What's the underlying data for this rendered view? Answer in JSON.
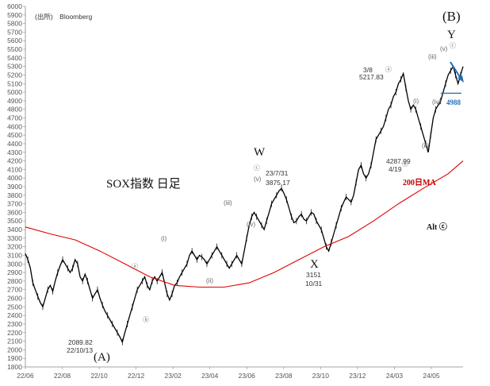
{
  "chart_data": {
    "type": "line",
    "title": "SOX指数 日足",
    "source_label": "(出所)　Bloomberg",
    "y_axis": {
      "min": 1800,
      "max": 6000,
      "step": 100,
      "tick_labels": [
        "1800",
        "1900",
        "2000",
        "2100",
        "2200",
        "2300",
        "2400",
        "2500",
        "2600",
        "2700",
        "2800",
        "2900",
        "3000",
        "3100",
        "3200",
        "3300",
        "3400",
        "3500",
        "3600",
        "3700",
        "3800",
        "3900",
        "4000",
        "4100",
        "4200",
        "4300",
        "4400",
        "4500",
        "4600",
        "4700",
        "4800",
        "4900",
        "5000",
        "5100",
        "5200",
        "5300",
        "5400",
        "5500",
        "5600",
        "5700",
        "5800",
        "5900",
        "6000"
      ]
    },
    "x_axis": {
      "tick_labels": [
        "22/06",
        "22/08",
        "22/10",
        "22/12",
        "23/02",
        "23/04",
        "23/06",
        "23/08",
        "23/10",
        "23/12",
        "24/03",
        "24/05"
      ]
    },
    "grid": false,
    "series": [
      {
        "kind": "price",
        "color": "#000000",
        "points": [
          [
            0,
            3120
          ],
          [
            2,
            3050
          ],
          [
            4,
            2950
          ],
          [
            6,
            2780
          ],
          [
            8,
            2700
          ],
          [
            10,
            2620
          ],
          [
            12,
            2550
          ],
          [
            14,
            2500
          ],
          [
            16,
            2600
          ],
          [
            18,
            2700
          ],
          [
            20,
            2750
          ],
          [
            22,
            2680
          ],
          [
            24,
            2800
          ],
          [
            26,
            2900
          ],
          [
            28,
            2980
          ],
          [
            30,
            3050
          ],
          [
            32,
            3000
          ],
          [
            34,
            2950
          ],
          [
            36,
            2900
          ],
          [
            38,
            2950
          ],
          [
            40,
            3050
          ],
          [
            42,
            3000
          ],
          [
            44,
            2850
          ],
          [
            46,
            2800
          ],
          [
            48,
            2880
          ],
          [
            50,
            2800
          ],
          [
            52,
            2700
          ],
          [
            54,
            2600
          ],
          [
            56,
            2650
          ],
          [
            58,
            2700
          ],
          [
            60,
            2600
          ],
          [
            62,
            2520
          ],
          [
            64,
            2450
          ],
          [
            66,
            2400
          ],
          [
            68,
            2350
          ],
          [
            70,
            2300
          ],
          [
            72,
            2250
          ],
          [
            74,
            2200
          ],
          [
            76,
            2150
          ],
          [
            78,
            2090
          ],
          [
            80,
            2200
          ],
          [
            82,
            2300
          ],
          [
            84,
            2400
          ],
          [
            86,
            2500
          ],
          [
            88,
            2600
          ],
          [
            90,
            2700
          ],
          [
            92,
            2750
          ],
          [
            94,
            2800
          ],
          [
            96,
            2850
          ],
          [
            98,
            2750
          ],
          [
            100,
            2700
          ],
          [
            102,
            2800
          ],
          [
            104,
            2850
          ],
          [
            106,
            2800
          ],
          [
            108,
            2850
          ],
          [
            110,
            2900
          ],
          [
            112,
            2780
          ],
          [
            114,
            2650
          ],
          [
            116,
            2580
          ],
          [
            118,
            2650
          ],
          [
            120,
            2750
          ],
          [
            122,
            2780
          ],
          [
            124,
            2850
          ],
          [
            126,
            2900
          ],
          [
            128,
            2950
          ],
          [
            130,
            3000
          ],
          [
            132,
            3100
          ],
          [
            134,
            3150
          ],
          [
            136,
            3100
          ],
          [
            138,
            3050
          ],
          [
            140,
            3100
          ],
          [
            142,
            3080
          ],
          [
            144,
            3050
          ],
          [
            146,
            3000
          ],
          [
            148,
            3050
          ],
          [
            150,
            3100
          ],
          [
            152,
            3150
          ],
          [
            154,
            3200
          ],
          [
            156,
            3150
          ],
          [
            158,
            3100
          ],
          [
            160,
            3050
          ],
          [
            162,
            3000
          ],
          [
            164,
            2950
          ],
          [
            166,
            3000
          ],
          [
            168,
            3050
          ],
          [
            170,
            3100
          ],
          [
            172,
            3050
          ],
          [
            174,
            3000
          ],
          [
            176,
            3150
          ],
          [
            178,
            3300
          ],
          [
            180,
            3450
          ],
          [
            182,
            3550
          ],
          [
            184,
            3600
          ],
          [
            186,
            3550
          ],
          [
            188,
            3500
          ],
          [
            190,
            3450
          ],
          [
            192,
            3400
          ],
          [
            194,
            3500
          ],
          [
            196,
            3600
          ],
          [
            198,
            3700
          ],
          [
            200,
            3750
          ],
          [
            202,
            3800
          ],
          [
            204,
            3850
          ],
          [
            206,
            3880
          ],
          [
            208,
            3820
          ],
          [
            210,
            3750
          ],
          [
            212,
            3650
          ],
          [
            214,
            3550
          ],
          [
            216,
            3480
          ],
          [
            218,
            3500
          ],
          [
            220,
            3550
          ],
          [
            222,
            3580
          ],
          [
            224,
            3520
          ],
          [
            226,
            3500
          ],
          [
            228,
            3550
          ],
          [
            230,
            3600
          ],
          [
            232,
            3580
          ],
          [
            234,
            3500
          ],
          [
            236,
            3450
          ],
          [
            238,
            3400
          ],
          [
            240,
            3300
          ],
          [
            242,
            3200
          ],
          [
            244,
            3150
          ],
          [
            246,
            3250
          ],
          [
            248,
            3350
          ],
          [
            250,
            3450
          ],
          [
            252,
            3550
          ],
          [
            254,
            3650
          ],
          [
            256,
            3720
          ],
          [
            258,
            3780
          ],
          [
            260,
            3750
          ],
          [
            262,
            3720
          ],
          [
            264,
            3800
          ],
          [
            266,
            3950
          ],
          [
            268,
            4100
          ],
          [
            270,
            4150
          ],
          [
            272,
            4050
          ],
          [
            274,
            4000
          ],
          [
            276,
            4050
          ],
          [
            278,
            4150
          ],
          [
            280,
            4300
          ],
          [
            282,
            4450
          ],
          [
            284,
            4500
          ],
          [
            286,
            4550
          ],
          [
            288,
            4600
          ],
          [
            290,
            4700
          ],
          [
            292,
            4800
          ],
          [
            294,
            4850
          ],
          [
            296,
            4950
          ],
          [
            298,
            5000
          ],
          [
            300,
            5100
          ],
          [
            302,
            5150
          ],
          [
            304,
            5218
          ],
          [
            306,
            5050
          ],
          [
            308,
            4900
          ],
          [
            310,
            4800
          ],
          [
            312,
            4850
          ],
          [
            314,
            4800
          ],
          [
            316,
            4700
          ],
          [
            318,
            4600
          ],
          [
            320,
            4500
          ],
          [
            322,
            4400
          ],
          [
            324,
            4300
          ],
          [
            326,
            4500
          ],
          [
            328,
            4700
          ],
          [
            330,
            4800
          ],
          [
            332,
            4850
          ],
          [
            334,
            4900
          ],
          [
            336,
            5000
          ],
          [
            338,
            5100
          ],
          [
            340,
            5200
          ],
          [
            342,
            5250
          ],
          [
            344,
            5300
          ],
          [
            346,
            5200
          ],
          [
            348,
            5100
          ],
          [
            350,
            5200
          ],
          [
            352,
            5300
          ]
        ]
      },
      {
        "kind": "ma200",
        "color": "#e00000",
        "points": [
          [
            0,
            3430
          ],
          [
            20,
            3350
          ],
          [
            40,
            3280
          ],
          [
            60,
            3150
          ],
          [
            80,
            3000
          ],
          [
            100,
            2850
          ],
          [
            120,
            2750
          ],
          [
            140,
            2730
          ],
          [
            160,
            2730
          ],
          [
            180,
            2780
          ],
          [
            200,
            2900
          ],
          [
            220,
            3050
          ],
          [
            240,
            3200
          ],
          [
            260,
            3320
          ],
          [
            280,
            3500
          ],
          [
            300,
            3700
          ],
          [
            320,
            3880
          ],
          [
            340,
            4050
          ],
          [
            352,
            4200
          ]
        ]
      }
    ],
    "horizontal_line": {
      "value": 4988,
      "label": "4988",
      "color": "#1f6fb5"
    },
    "annotations": {
      "low_a": {
        "line1": "2089.82",
        "line2": "22/10/13",
        "wave": "(A)"
      },
      "peak_w": {
        "line1": "23/7/31",
        "line2": "3875.17",
        "wave": "W"
      },
      "low_x": {
        "line1": "3151",
        "line2": "10/31",
        "wave": "X"
      },
      "peak_a": {
        "line1": "3/8",
        "line2": "5217.83"
      },
      "low_b": {
        "line1": "4287.99",
        "line2": "4/19"
      },
      "top_b": {
        "wave": "(B)",
        "sub": "Y"
      },
      "ma_label": "200日MA",
      "alt_label": "Alt ⓒ",
      "small": {
        "a1": "ⓐ",
        "b1": "ⓑ",
        "i1": "(i)",
        "ii1": "(ii)",
        "iii1": "(iii)",
        "iv1": "(iv)",
        "v1": "(v)",
        "c1": "ⓒ",
        "a2": "ⓐ",
        "b2": "ⓑ",
        "i2": "(i)",
        "ii2": "(ii)",
        "iii2": "(iii)",
        "iv2": "(iv)",
        "v2": "(v)",
        "c2": "ⓒ"
      }
    }
  }
}
